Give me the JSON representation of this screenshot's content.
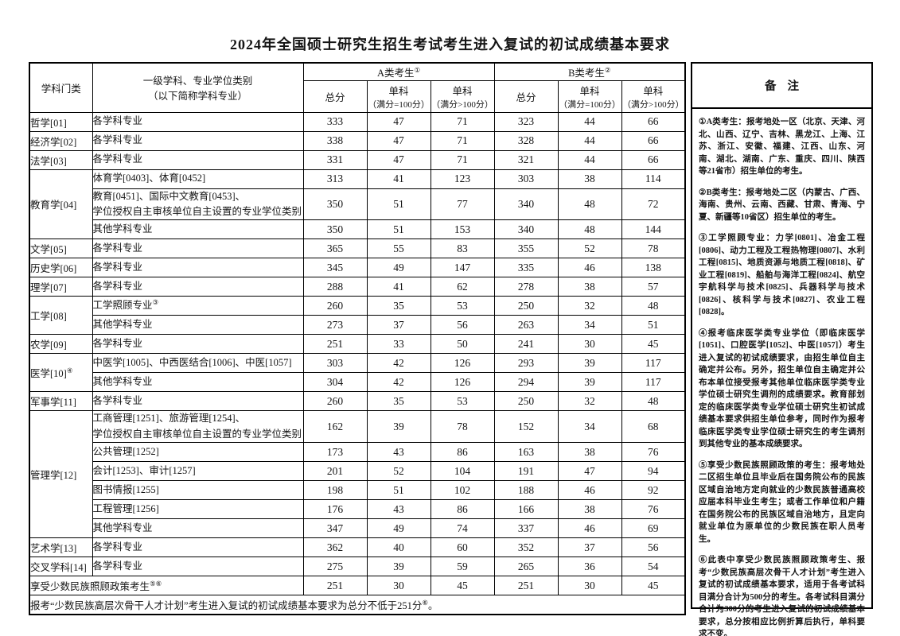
{
  "title": "2024年全国硕士研究生招生考试考生进入复试的初试成绩基本要求",
  "table": {
    "header": {
      "col_category": "学科门类",
      "col_discipline_line1": "一级学科、专业学位类别",
      "col_discipline_line2": "（以下简称学科专业）",
      "group_a_label": "A类考生",
      "group_a_sup": "①",
      "group_b_label": "B类考生",
      "group_b_sup": "②",
      "total_label": "总分",
      "subject_label": "单科",
      "subject_eq100_sub": "（满分=100分）",
      "subject_gt100_sub": "（满分>100分）"
    },
    "groups": [
      {
        "category": "哲学[01]",
        "rows": [
          {
            "lines": [
              "各学科专业"
            ],
            "scores": [
              "333",
              "47",
              "71",
              "323",
              "44",
              "66"
            ]
          }
        ]
      },
      {
        "category": "经济学[02]",
        "rows": [
          {
            "lines": [
              "各学科专业"
            ],
            "scores": [
              "338",
              "47",
              "71",
              "328",
              "44",
              "66"
            ]
          }
        ]
      },
      {
        "category": "法学[03]",
        "rows": [
          {
            "lines": [
              "各学科专业"
            ],
            "scores": [
              "331",
              "47",
              "71",
              "321",
              "44",
              "66"
            ]
          }
        ]
      },
      {
        "category": "教育学[04]",
        "rows": [
          {
            "lines": [
              "体育学[0403]、体育[0452]"
            ],
            "scores": [
              "313",
              "41",
              "123",
              "303",
              "38",
              "114"
            ]
          },
          {
            "lines": [
              "教育[0451]、国际中文教育[0453]、",
              "学位授权自主审核单位自主设置的专业学位类别"
            ],
            "scores": [
              "350",
              "51",
              "77",
              "340",
              "48",
              "72"
            ]
          },
          {
            "lines": [
              "其他学科专业"
            ],
            "scores": [
              "350",
              "51",
              "153",
              "340",
              "48",
              "144"
            ]
          }
        ]
      },
      {
        "category": "文学[05]",
        "rows": [
          {
            "lines": [
              "各学科专业"
            ],
            "scores": [
              "365",
              "55",
              "83",
              "355",
              "52",
              "78"
            ]
          }
        ]
      },
      {
        "category": "历史学[06]",
        "rows": [
          {
            "lines": [
              "各学科专业"
            ],
            "scores": [
              "345",
              "49",
              "147",
              "335",
              "46",
              "138"
            ]
          }
        ]
      },
      {
        "category": "理学[07]",
        "rows": [
          {
            "lines": [
              "各学科专业"
            ],
            "scores": [
              "288",
              "41",
              "62",
              "278",
              "38",
              "57"
            ]
          }
        ]
      },
      {
        "category": "工学[08]",
        "rows": [
          {
            "lines": [
              "工学照顾专业"
            ],
            "sup": "③",
            "scores": [
              "260",
              "35",
              "53",
              "250",
              "32",
              "48"
            ]
          },
          {
            "lines": [
              "其他学科专业"
            ],
            "scores": [
              "273",
              "37",
              "56",
              "263",
              "34",
              "51"
            ]
          }
        ]
      },
      {
        "category": "农学[09]",
        "rows": [
          {
            "lines": [
              "各学科专业"
            ],
            "scores": [
              "251",
              "33",
              "50",
              "241",
              "30",
              "45"
            ]
          }
        ]
      },
      {
        "category": "医学[10]",
        "category_sup": "④",
        "rows": [
          {
            "lines": [
              "中医学[1005]、中西医结合[1006]、中医[1057]"
            ],
            "scores": [
              "303",
              "42",
              "126",
              "293",
              "39",
              "117"
            ]
          },
          {
            "lines": [
              "其他学科专业"
            ],
            "scores": [
              "304",
              "42",
              "126",
              "294",
              "39",
              "117"
            ]
          }
        ]
      },
      {
        "category": "军事学[11]",
        "rows": [
          {
            "lines": [
              "各学科专业"
            ],
            "scores": [
              "260",
              "35",
              "53",
              "250",
              "32",
              "48"
            ]
          }
        ]
      },
      {
        "category": "管理学[12]",
        "rows": [
          {
            "lines": [
              "工商管理[1251]、旅游管理[1254]、",
              "学位授权自主审核单位自主设置的专业学位类别"
            ],
            "scores": [
              "162",
              "39",
              "78",
              "152",
              "34",
              "68"
            ]
          },
          {
            "lines": [
              "公共管理[1252]"
            ],
            "scores": [
              "173",
              "43",
              "86",
              "163",
              "38",
              "76"
            ]
          },
          {
            "lines": [
              "会计[1253]、审计[1257]"
            ],
            "scores": [
              "201",
              "52",
              "104",
              "191",
              "47",
              "94"
            ]
          },
          {
            "lines": [
              "图书情报[1255]"
            ],
            "scores": [
              "198",
              "51",
              "102",
              "188",
              "46",
              "92"
            ]
          },
          {
            "lines": [
              "工程管理[1256]"
            ],
            "scores": [
              "176",
              "43",
              "86",
              "166",
              "38",
              "76"
            ]
          },
          {
            "lines": [
              "其他学科专业"
            ],
            "scores": [
              "347",
              "49",
              "74",
              "337",
              "46",
              "69"
            ]
          }
        ]
      },
      {
        "category": "艺术学[13]",
        "rows": [
          {
            "lines": [
              "各学科专业"
            ],
            "scores": [
              "362",
              "40",
              "60",
              "352",
              "37",
              "56"
            ]
          }
        ]
      },
      {
        "category": "交叉学科[14]",
        "rows": [
          {
            "lines": [
              "各学科专业"
            ],
            "scores": [
              "275",
              "39",
              "59",
              "265",
              "36",
              "54"
            ]
          }
        ]
      },
      {
        "category": "享受少数民族照顾政策考生",
        "category_sup": "⑤⑥",
        "span2": true,
        "rows": [
          {
            "lines": [],
            "scores": [
              "251",
              "30",
              "45",
              "251",
              "30",
              "45"
            ]
          }
        ]
      }
    ],
    "footnote": {
      "text": "报考“少数民族高层次骨干人才计划”考生进入复试的初试成绩基本要求为总分不低于251分",
      "sup": "⑥",
      "end": "。"
    }
  },
  "notes": {
    "title": "备注",
    "items": [
      {
        "sup": "①",
        "text": "A类考生：报考地处一区（北京、天津、河北、山西、辽宁、吉林、黑龙江、上海、江苏、浙江、安徽、福建、江西、山东、河南、湖北、湖南、广东、重庆、四川、陕西等21省市）招生单位的考生。"
      },
      {
        "sup": "②",
        "text": "B类考生：报考地处二区（内蒙古、广西、海南、贵州、云南、西藏、甘肃、青海、宁夏、新疆等10省区）招生单位的考生。"
      },
      {
        "sup": "③",
        "text": "工学照顾专业：力学[0801]、冶金工程[0806]、动力工程及工程热物理[0807]、水利工程[0815]、地质资源与地质工程[0818]、矿业工程[0819]、船舶与海洋工程[0824]、航空宇航科学与技术[0825]、兵器科学与技术[0826]、核科学与技术[0827]、农业工程[0828]。"
      },
      {
        "sup": "④",
        "text": "报考临床医学类专业学位（即临床医学[1051]、口腔医学[1052]、中医[1057]）考生进入复试的初试成绩要求，由招生单位自主确定并公布。另外，招生单位自主确定并公布本单位接受报考其他单位临床医学类专业学位硕士研究生调剂的成绩要求。教育部划定的临床医学类专业学位硕士研究生初试成绩基本要求供招生单位参考，同时作为报考临床医学类专业学位硕士研究生的考生调剂到其他专业的基本成绩要求。"
      },
      {
        "sup": "⑤",
        "text": "享受少数民族照顾政策的考生：报考地处二区招生单位且毕业后在国务院公布的民族区域自治地方定向就业的少数民族普通高校应届本科毕业生考生；或者工作单位和户籍在国务院公布的民族区域自治地方，且定向就业单位为原单位的少数民族在职人员考生。"
      },
      {
        "sup": "⑥",
        "text": "此表中享受少数民族照顾政策考生、报考“少数民族高层次骨干人才计划”考生进入复试的初试成绩基本要求，适用于各考试科目满分合计为500分的考生。各考试科目满分合计为300分的考生进入复试的初试成绩基本要求，总分按相应比例折算后执行，单科要求不变。"
      }
    ]
  }
}
